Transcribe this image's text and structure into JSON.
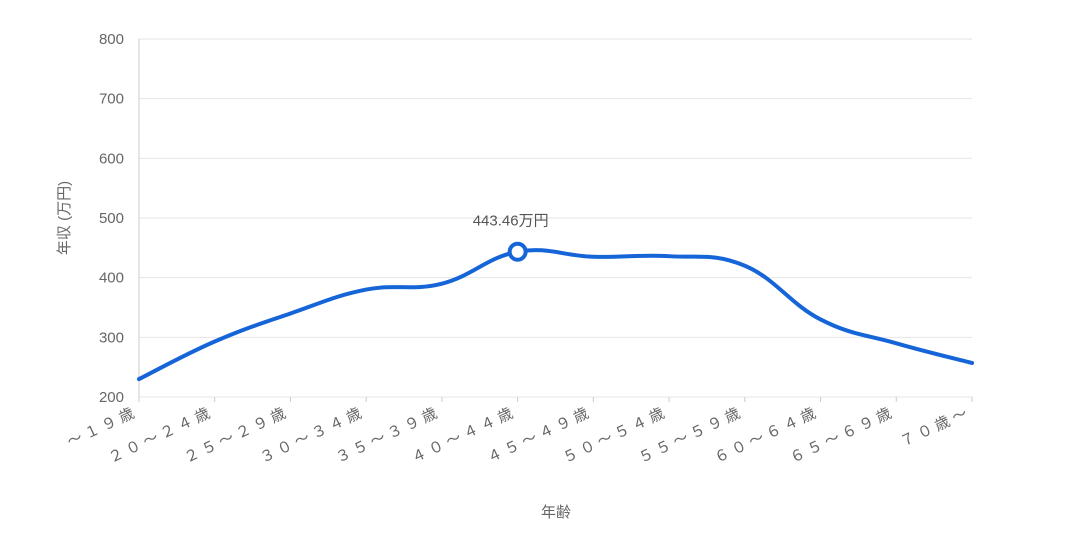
{
  "chart_data": {
    "type": "line",
    "title": "",
    "xlabel": "年齢",
    "ylabel": "年収 (万円)",
    "ylim": [
      200,
      800
    ],
    "yticks": [
      "200",
      "300",
      "400",
      "500",
      "600",
      "700",
      "800"
    ],
    "categories": [
      "～１９歳",
      "２０～２４歳",
      "２５～２９歳",
      "３０～３４歳",
      "３５～３９歳",
      "４０～４４歳",
      "４５～４９歳",
      "５０～５４歳",
      "５５～５９歳",
      "６０～６４歳",
      "６５～６９歳",
      "７０歳～"
    ],
    "series": [
      {
        "values": [
          230,
          293,
          340,
          380,
          390,
          443.46,
          435,
          436,
          420,
          330,
          290,
          257
        ]
      }
    ],
    "highlight": {
      "index": 5,
      "label": "443.46万円"
    },
    "line_color": "#1565d8",
    "grid": true
  }
}
